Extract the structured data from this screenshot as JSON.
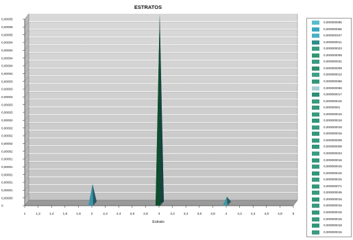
{
  "chart_data": {
    "type": "area",
    "title": "ESTRATOS",
    "xlabel": "Estrato",
    "ylabel": "",
    "x_ticks": [
      "1",
      "1,2",
      "1,4",
      "1,6",
      "1,8",
      "2",
      "2,2",
      "2,4",
      "2,6",
      "2,8",
      "3",
      "3,2",
      "3,4",
      "3,6",
      "3,8",
      "4",
      "4,2",
      "4,4",
      "4,6",
      "4,8",
      "5"
    ],
    "y_ticks": [
      "0",
      "0,00000",
      "0,00001",
      "0,00001",
      "0,00001",
      "0,00001",
      "0,00001",
      "0,00002",
      "0,00002",
      "0,00002",
      "0,00002",
      "0,00002",
      "0,00003",
      "0,00003",
      "0,00003",
      "0,00003",
      "0,00003",
      "0,00004",
      "0,00004",
      "0,00004",
      "0,00004",
      "0,00004",
      "0,00005",
      "0,00005",
      "0,00005"
    ],
    "ylim": [
      0,
      5e-05
    ],
    "xlim": [
      1,
      5
    ],
    "grid": true,
    "legend_position": "right",
    "peaks": [
      {
        "x": 2,
        "y": 5.8e-06,
        "color": "#3b94a6"
      },
      {
        "x": 3,
        "y": 5.13e-05,
        "color": "#0e4e2f"
      },
      {
        "x": 4,
        "y": 2.4e-06,
        "color": "#3f99a4"
      }
    ],
    "legend": [
      {
        "label": "0,000000065",
        "color": "#58bccf"
      },
      {
        "label": "0,000000055",
        "color": "#3aa6bf"
      },
      {
        "label": "0,000000347",
        "color": "#4cb0c6"
      },
      {
        "label": "0,000000011",
        "color": "#2f8e8a"
      },
      {
        "label": "0,000000023",
        "color": "#3a9a7f"
      },
      {
        "label": "0,000000008",
        "color": "#34976f"
      },
      {
        "label": "0,000000031",
        "color": "#3c9b84"
      },
      {
        "label": "0,000000009",
        "color": "#2f9070"
      },
      {
        "label": "0,000000012",
        "color": "#409f88"
      },
      {
        "label": "0,000000066",
        "color": "#36977a"
      },
      {
        "label": "0,000000066",
        "color": "#a6cfd4"
      },
      {
        "label": "0,000000017",
        "color": "#2e8e76"
      },
      {
        "label": "0,000000015",
        "color": "#3c9a80"
      },
      {
        "label": "0,00000001",
        "color": "#38977c"
      },
      {
        "label": "0,000000015",
        "color": "#3a9a7e"
      },
      {
        "label": "0,000000018",
        "color": "#34967a"
      },
      {
        "label": "0,000000018",
        "color": "#3c9b82"
      },
      {
        "label": "0,000000015",
        "color": "#359779"
      },
      {
        "label": "0,000000008",
        "color": "#3a9a7f"
      },
      {
        "label": "0,000000008",
        "color": "#33957a"
      },
      {
        "label": "0,000000023",
        "color": "#3d9c83"
      },
      {
        "label": "0,000000016",
        "color": "#35967b"
      },
      {
        "label": "0,000000015",
        "color": "#3a997f"
      },
      {
        "label": "0,000000015",
        "color": "#34957a"
      },
      {
        "label": "0,000000015",
        "color": "#3b9a80"
      },
      {
        "label": "0,000000071",
        "color": "#36977c"
      },
      {
        "label": "0,000000045",
        "color": "#3a9a7f"
      },
      {
        "label": "0,000000015",
        "color": "#33957a"
      },
      {
        "label": "0,000000015",
        "color": "#3b9a81"
      },
      {
        "label": "0,000000015",
        "color": "#36967b"
      },
      {
        "label": "0,000000015",
        "color": "#3a997f"
      },
      {
        "label": "0,000000018",
        "color": "#34957a"
      },
      {
        "label": "0,000000015",
        "color": "#3b9a80"
      }
    ]
  }
}
